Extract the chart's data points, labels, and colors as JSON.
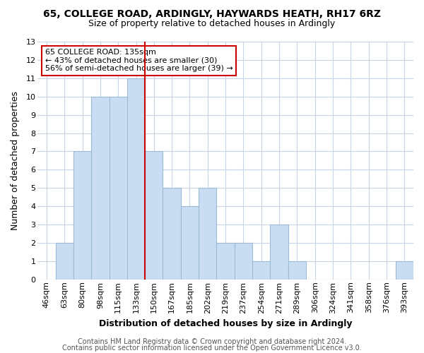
{
  "title1": "65, COLLEGE ROAD, ARDINGLY, HAYWARDS HEATH, RH17 6RZ",
  "title2": "Size of property relative to detached houses in Ardingly",
  "xlabel": "Distribution of detached houses by size in Ardingly",
  "ylabel": "Number of detached properties",
  "bar_labels": [
    "46sqm",
    "63sqm",
    "80sqm",
    "98sqm",
    "115sqm",
    "133sqm",
    "150sqm",
    "167sqm",
    "185sqm",
    "202sqm",
    "219sqm",
    "237sqm",
    "254sqm",
    "271sqm",
    "289sqm",
    "306sqm",
    "324sqm",
    "341sqm",
    "358sqm",
    "376sqm",
    "393sqm"
  ],
  "bar_heights": [
    0,
    2,
    7,
    10,
    10,
    11,
    7,
    5,
    4,
    5,
    2,
    2,
    1,
    3,
    1,
    0,
    0,
    0,
    0,
    0,
    1
  ],
  "bar_color": "#c9ddf2",
  "bar_edge_color": "#9bbad8",
  "red_line_index": 5,
  "annotation_title": "65 COLLEGE ROAD: 135sqm",
  "annotation_line1": "← 43% of detached houses are smaller (30)",
  "annotation_line2": "56% of semi-detached houses are larger (39) →",
  "annotation_box_color": "#ffffff",
  "annotation_box_edge": "#cc0000",
  "ylim": [
    0,
    13
  ],
  "yticks": [
    0,
    1,
    2,
    3,
    4,
    5,
    6,
    7,
    8,
    9,
    10,
    11,
    12,
    13
  ],
  "footer1": "Contains HM Land Registry data © Crown copyright and database right 2024.",
  "footer2": "Contains public sector information licensed under the Open Government Licence v3.0.",
  "background_color": "#ffffff",
  "grid_color": "#c8d4e4",
  "title1_fontsize": 10,
  "title2_fontsize": 9,
  "xlabel_fontsize": 9,
  "ylabel_fontsize": 9,
  "tick_fontsize": 8,
  "annotation_fontsize": 8,
  "footer_fontsize": 7
}
